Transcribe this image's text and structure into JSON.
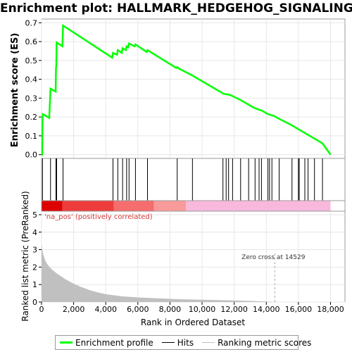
{
  "title": "Enrichment plot: HALLMARK_HEDGEHOG_SIGNALING",
  "chart_data": {
    "type": "line",
    "es_panel": {
      "ylabel": "Enrichment score (ES)",
      "ylim": [
        -0.02,
        0.72
      ],
      "yticks": [
        "0.0",
        "0.1",
        "0.2",
        "0.3",
        "0.4",
        "0.5",
        "0.6",
        "0.7"
      ],
      "ytick_values": [
        0.0,
        0.1,
        0.2,
        0.3,
        0.4,
        0.5,
        0.6,
        0.7
      ],
      "color": "#00ff00",
      "series": {
        "name": "Enrichment profile",
        "x": [
          0,
          40,
          60,
          80,
          480,
          560,
          880,
          900,
          920,
          940,
          1300,
          1340,
          4400,
          4450,
          4700,
          4750,
          5000,
          5050,
          5250,
          5300,
          5400,
          5450,
          5800,
          5850,
          6550,
          6600,
          8400,
          8450,
          8600,
          9400,
          11200,
          11300,
          11500,
          11600,
          11800,
          12400,
          12900,
          13200,
          13500,
          13700,
          14100,
          14300,
          14500,
          14800,
          15500,
          16000,
          16500,
          17000,
          17500,
          18000
        ],
        "y": [
          0.0,
          0.0,
          0.19,
          0.215,
          0.195,
          0.35,
          0.335,
          0.46,
          0.47,
          0.595,
          0.575,
          0.685,
          0.515,
          0.54,
          0.53,
          0.555,
          0.54,
          0.565,
          0.555,
          0.575,
          0.57,
          0.59,
          0.575,
          0.585,
          0.545,
          0.555,
          0.46,
          0.465,
          0.455,
          0.42,
          0.33,
          0.325,
          0.32,
          0.32,
          0.315,
          0.29,
          0.265,
          0.25,
          0.24,
          0.235,
          0.215,
          0.21,
          0.205,
          0.19,
          0.16,
          0.135,
          0.11,
          0.085,
          0.06,
          0.0
        ]
      }
    },
    "hits": {
      "name": "Hits",
      "positions": [
        60,
        560,
        900,
        940,
        1340,
        4450,
        4750,
        5050,
        5300,
        5450,
        5850,
        6600,
        8450,
        9400,
        11300,
        11500,
        11650,
        11900,
        12400,
        12900,
        13300,
        13550,
        13700,
        14100,
        14200,
        14350,
        14800,
        15600,
        16000,
        16050,
        16400,
        16600,
        17000,
        17500
      ]
    },
    "rank_bar": {
      "segments": [
        {
          "from": 0,
          "to": 1300,
          "color": "#dd0000"
        },
        {
          "from": 1300,
          "to": 4500,
          "color": "#ee3b3b"
        },
        {
          "from": 4500,
          "to": 7000,
          "color": "#f56d6d"
        },
        {
          "from": 7000,
          "to": 9000,
          "color": "#f99a9a"
        },
        {
          "from": 9000,
          "to": 18000,
          "color": "#f8b8dc"
        }
      ]
    },
    "metric_panel": {
      "ylabel": "Ranked list metric (PreRanked)",
      "ylim": [
        0,
        5.2
      ],
      "yticks": [
        "0",
        "1",
        "2",
        "3",
        "4",
        "5"
      ],
      "ytick_values": [
        0,
        1,
        2,
        3,
        4,
        5
      ],
      "series": {
        "name": "Ranking metric scores",
        "color": "#c0c0c0",
        "x": [
          0,
          50,
          100,
          200,
          300,
          500,
          700,
          1000,
          1500,
          2000,
          2500,
          3000,
          3500,
          4000,
          5000,
          6000,
          7000,
          8000,
          9000,
          10000,
          11000,
          12000,
          13000,
          14000,
          14529,
          15000,
          16000,
          17000,
          18000
        ],
        "y": [
          3.3,
          3.0,
          2.75,
          2.45,
          2.25,
          2.0,
          1.82,
          1.6,
          1.3,
          1.05,
          0.85,
          0.68,
          0.55,
          0.45,
          0.33,
          0.26,
          0.22,
          0.18,
          0.15,
          0.13,
          0.11,
          0.09,
          0.06,
          0.03,
          0.0,
          0.0,
          0.0,
          0.0,
          0.0
        ]
      },
      "pos_label": "'na_pos' (positively correlated)",
      "zero_cross_label": "Zero cross at 14529",
      "zero_cross": 14529
    },
    "xaxis": {
      "xlabel": "Rank in Ordered Dataset",
      "xlim": [
        0,
        18900
      ],
      "xticks": [
        "0",
        "2,000",
        "4,000",
        "6,000",
        "8,000",
        "10,000",
        "12,000",
        "14,000",
        "16,000",
        "18,000"
      ],
      "xtick_values": [
        0,
        2000,
        4000,
        6000,
        8000,
        10000,
        12000,
        14000,
        16000,
        18000
      ]
    }
  },
  "legend": {
    "enrichment_label": "Enrichment profile",
    "hits_label": "Hits",
    "metric_label": "Ranking metric scores",
    "enrichment_color": "#00ff00",
    "hits_color": "#000000",
    "metric_color": "#c0c0c0"
  }
}
